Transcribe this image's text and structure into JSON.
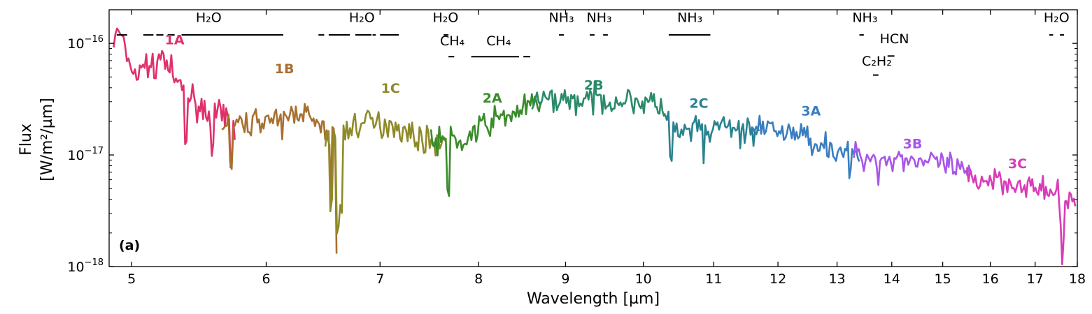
{
  "chart_data": {
    "type": "line",
    "panel_label": "(a)",
    "xlabel": "Wavelength [µm]",
    "ylabel_line1": "Flux",
    "ylabel_line2": "[W/m²/µm]",
    "x_scale": "log",
    "y_scale": "log",
    "xlim": [
      4.85,
      18.0
    ],
    "ylim": [
      1e-18,
      2e-16
    ],
    "x_ticks": [
      5,
      6,
      7,
      8,
      9,
      10,
      11,
      12,
      13,
      14,
      15,
      16,
      17,
      18
    ],
    "y_ticks": [
      {
        "value": 1e-16,
        "base": "10",
        "exp": "−16"
      },
      {
        "value": 1e-17,
        "base": "10",
        "exp": "−17"
      },
      {
        "value": 1e-18,
        "base": "10",
        "exp": "−18"
      }
    ],
    "grid": false,
    "series": [
      {
        "name": "1A",
        "color": "#e0306a",
        "x_range": [
          4.88,
          5.75
        ],
        "points": [
          [
            4.88,
            1.05e-16
          ],
          [
            4.92,
            1.3e-16
          ],
          [
            4.96,
            8e-17
          ],
          [
            5.0,
            6e-17
          ],
          [
            5.05,
            5e-17
          ],
          [
            5.1,
            7e-17
          ],
          [
            5.15,
            5.5e-17
          ],
          [
            5.2,
            8e-17
          ],
          [
            5.25,
            6.5e-17
          ],
          [
            5.3,
            4.5e-17
          ],
          [
            5.35,
            4e-17
          ],
          [
            5.4,
            3.5e-17
          ],
          [
            5.45,
            3e-17
          ],
          [
            5.5,
            2.6e-17
          ],
          [
            5.55,
            2.4e-17
          ],
          [
            5.6,
            2.3e-17
          ],
          [
            5.65,
            2.2e-17
          ],
          [
            5.7,
            2e-17
          ],
          [
            5.75,
            1.9e-17
          ]
        ]
      },
      {
        "name": "1B",
        "color": "#a87030",
        "x_range": [
          5.65,
          6.6
        ],
        "points": [
          [
            5.65,
            1.7e-17
          ],
          [
            5.7,
            1.9e-17
          ],
          [
            5.8,
            1.8e-17
          ],
          [
            5.9,
            2e-17
          ],
          [
            6.0,
            2.2e-17
          ],
          [
            6.1,
            1.8e-17
          ],
          [
            6.2,
            2.3e-17
          ],
          [
            6.3,
            2.6e-17
          ],
          [
            6.4,
            1.9e-17
          ],
          [
            6.5,
            1.6e-17
          ],
          [
            6.55,
            1.5e-17
          ],
          [
            6.6,
            1.3e-17
          ]
        ]
      },
      {
        "name": "1C",
        "color": "#8f8a28",
        "x_range": [
          6.5,
          7.65
        ],
        "points": [
          [
            6.5,
            1.4e-17
          ],
          [
            6.6,
            1.6e-17
          ],
          [
            6.7,
            1.7e-17
          ],
          [
            6.8,
            1.9e-17
          ],
          [
            6.9,
            2e-17
          ],
          [
            7.0,
            1.8e-17
          ],
          [
            7.1,
            2e-17
          ],
          [
            7.2,
            1.7e-17
          ],
          [
            7.3,
            1.5e-17
          ],
          [
            7.4,
            1.4e-17
          ],
          [
            7.5,
            1.3e-17
          ],
          [
            7.6,
            1.35e-17
          ],
          [
            7.65,
            1.4e-17
          ]
        ]
      },
      {
        "name": "2A",
        "color": "#3a8c2a",
        "x_range": [
          7.5,
          8.7
        ],
        "points": [
          [
            7.5,
            1.3e-17
          ],
          [
            7.6,
            1.4e-17
          ],
          [
            7.7,
            1.35e-17
          ],
          [
            7.8,
            1.25e-17
          ],
          [
            7.9,
            1.45e-17
          ],
          [
            8.0,
            1.7e-17
          ],
          [
            8.1,
            1.9e-17
          ],
          [
            8.2,
            2.1e-17
          ],
          [
            8.3,
            2.2e-17
          ],
          [
            8.4,
            2.4e-17
          ],
          [
            8.5,
            2.6e-17
          ],
          [
            8.6,
            2.8e-17
          ],
          [
            8.7,
            2.9e-17
          ]
        ]
      },
      {
        "name": "2B",
        "color": "#2a8a6a",
        "x_range": [
          8.6,
          10.3
        ],
        "points": [
          [
            8.6,
            2.9e-17
          ],
          [
            8.8,
            3.1e-17
          ],
          [
            9.0,
            3.2e-17
          ],
          [
            9.2,
            3e-17
          ],
          [
            9.4,
            3.2e-17
          ],
          [
            9.6,
            3e-17
          ],
          [
            9.8,
            3.1e-17
          ],
          [
            10.0,
            3e-17
          ],
          [
            10.2,
            2.8e-17
          ],
          [
            10.3,
            2.4e-17
          ]
        ]
      },
      {
        "name": "2C",
        "color": "#2a8290",
        "x_range": [
          10.3,
          11.7
        ],
        "points": [
          [
            10.3,
            2.2e-17
          ],
          [
            10.5,
            1.5e-17
          ],
          [
            10.7,
            1.7e-17
          ],
          [
            10.9,
            1.6e-17
          ],
          [
            11.1,
            1.8e-17
          ],
          [
            11.3,
            1.75e-17
          ],
          [
            11.5,
            1.7e-17
          ],
          [
            11.7,
            1.65e-17
          ]
        ]
      },
      {
        "name": "3A",
        "color": "#3a7ec0",
        "x_range": [
          11.6,
          13.4
        ],
        "points": [
          [
            11.6,
            1.6e-17
          ],
          [
            11.8,
            1.7e-17
          ],
          [
            12.0,
            1.65e-17
          ],
          [
            12.2,
            1.6e-17
          ],
          [
            12.4,
            1.5e-17
          ],
          [
            12.6,
            1.35e-17
          ],
          [
            12.8,
            1.2e-17
          ],
          [
            13.0,
            1.1e-17
          ],
          [
            13.2,
            1.05e-17
          ],
          [
            13.4,
            1e-17
          ]
        ]
      },
      {
        "name": "3B",
        "color": "#a855e8",
        "x_range": [
          13.3,
          15.6
        ],
        "points": [
          [
            13.3,
            1e-17
          ],
          [
            13.6,
            9.5e-18
          ],
          [
            13.9,
            9e-18
          ],
          [
            14.2,
            9.5e-18
          ],
          [
            14.5,
            9e-18
          ],
          [
            14.8,
            8.5e-18
          ],
          [
            15.1,
            8e-18
          ],
          [
            15.4,
            7e-18
          ],
          [
            15.6,
            6.5e-18
          ]
        ]
      },
      {
        "name": "3C",
        "color": "#d83cb8",
        "x_range": [
          15.5,
          17.95
        ],
        "points": [
          [
            15.5,
            6.5e-18
          ],
          [
            15.8,
            6e-18
          ],
          [
            16.1,
            6.2e-18
          ],
          [
            16.4,
            5.8e-18
          ],
          [
            16.7,
            5.5e-18
          ],
          [
            17.0,
            5e-18
          ],
          [
            17.3,
            4.6e-18
          ],
          [
            17.6,
            4e-18
          ],
          [
            17.8,
            4.3e-18
          ],
          [
            17.95,
            3.6e-18
          ]
        ]
      }
    ],
    "region_labels": [
      {
        "text": "1A",
        "x": 5.3,
        "y": 9.8e-17,
        "color": "#e0306a"
      },
      {
        "text": "1B",
        "x": 6.15,
        "y": 5.4e-17,
        "color": "#a87030"
      },
      {
        "text": "1C",
        "x": 7.1,
        "y": 3.6e-17,
        "color": "#8f8a28"
      },
      {
        "text": "2A",
        "x": 8.15,
        "y": 2.95e-17,
        "color": "#3a8c2a"
      },
      {
        "text": "2B",
        "x": 9.35,
        "y": 3.85e-17,
        "color": "#2a8a6a"
      },
      {
        "text": "2C",
        "x": 10.78,
        "y": 2.65e-17,
        "color": "#2a8290"
      },
      {
        "text": "3A",
        "x": 12.55,
        "y": 2.25e-17,
        "color": "#3a7ec0"
      },
      {
        "text": "3B",
        "x": 14.4,
        "y": 1.15e-17,
        "color": "#a855e8"
      },
      {
        "text": "3C",
        "x": 16.6,
        "y": 7.6e-18,
        "color": "#d83cb8"
      }
    ],
    "features": [
      {
        "label": "H₂O",
        "label_x": 5.55,
        "label_y": 1.55e-16,
        "segments": [
          [
            4.9,
            4.97
          ],
          [
            5.08,
            5.15
          ],
          [
            5.17,
            5.22
          ],
          [
            5.25,
            5.3
          ],
          [
            5.35,
            6.14
          ]
        ],
        "line_y": 1.19e-16
      },
      {
        "label": "H₂O",
        "label_x": 6.83,
        "label_y": 1.55e-16,
        "segments": [
          [
            6.44,
            6.49
          ],
          [
            6.53,
            6.72
          ],
          [
            6.77,
            6.92
          ],
          [
            6.93,
            6.96
          ],
          [
            7.0,
            7.18
          ]
        ],
        "line_y": 1.19e-16
      },
      {
        "label": "H₂O",
        "label_x": 7.65,
        "label_y": 1.55e-16,
        "segments": [
          [
            7.63,
            7.68
          ]
        ],
        "line_y": 1.19e-16
      },
      {
        "label": "CH₄",
        "label_x": 7.72,
        "label_y": 9.6e-17,
        "segments": [
          [
            7.68,
            7.74
          ]
        ],
        "line_y": 7.6e-17
      },
      {
        "label": "CH₄",
        "label_x": 8.22,
        "label_y": 9.6e-17,
        "segments": [
          [
            7.92,
            8.45
          ],
          [
            8.5,
            8.58
          ]
        ],
        "line_y": 7.6e-17
      },
      {
        "label": "NH₃",
        "label_x": 8.95,
        "label_y": 1.55e-16,
        "segments": [
          [
            8.92,
            8.98
          ]
        ],
        "line_y": 1.19e-16
      },
      {
        "label": "NH₃",
        "label_x": 9.42,
        "label_y": 1.55e-16,
        "segments": [
          [
            9.3,
            9.36
          ],
          [
            9.47,
            9.53
          ]
        ],
        "line_y": 1.19e-16
      },
      {
        "label": "NH₃",
        "label_x": 10.65,
        "label_y": 1.55e-16,
        "segments": [
          [
            10.35,
            10.95
          ]
        ],
        "line_y": 1.19e-16
      },
      {
        "label": "NH₃",
        "label_x": 13.5,
        "label_y": 1.55e-16,
        "segments": [
          [
            13.4,
            13.48
          ]
        ],
        "line_y": 1.19e-16
      },
      {
        "label": "HCN",
        "label_x": 14.05,
        "label_y": 1e-16,
        "segments": [
          [
            13.92,
            14.05
          ]
        ],
        "line_y": 7.7e-17
      },
      {
        "label": "C₂H₂",
        "label_x": 13.72,
        "label_y": 6.3e-17,
        "segments": [
          [
            13.65,
            13.75
          ]
        ],
        "line_y": 5.2e-17
      },
      {
        "label": "H₂O",
        "label_x": 17.5,
        "label_y": 1.55e-16,
        "segments": [
          [
            17.33,
            17.42
          ],
          [
            17.58,
            17.68
          ]
        ],
        "line_y": 1.19e-16
      }
    ]
  }
}
